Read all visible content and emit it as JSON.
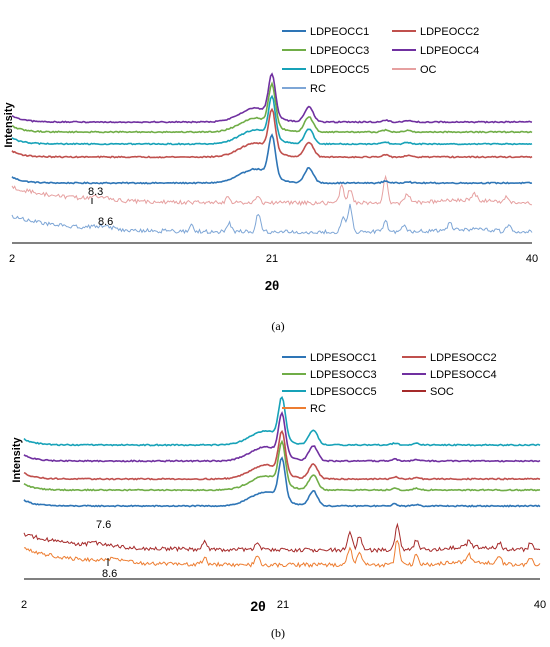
{
  "chart_data": [
    {
      "type": "line",
      "panel": "(a)",
      "xlabel": "2θ",
      "ylabel": "Intensity",
      "xticks": [
        "2",
        "21",
        "40"
      ],
      "xlim": [
        2,
        40
      ],
      "annotations": [
        "8.3",
        "8.6"
      ],
      "series": [
        {
          "name": "LDPEOCC1",
          "color": "#2e75b6",
          "peaks": [
            21.0,
            23.7
          ],
          "baseline_rank": 6
        },
        {
          "name": "LDPEOCC2",
          "color": "#c0504d",
          "peaks": [
            21.0,
            23.7
          ],
          "baseline_rank": 4
        },
        {
          "name": "LDPEOCC3",
          "color": "#70ad47",
          "peaks": [
            21.0,
            23.7
          ],
          "baseline_rank": 2
        },
        {
          "name": "LDPEOCC4",
          "color": "#7030a0",
          "peaks": [
            21.0,
            23.7
          ],
          "baseline_rank": 1
        },
        {
          "name": "LDPEOCC5",
          "color": "#17a2b8",
          "peaks": [
            21.0,
            23.7
          ],
          "baseline_rank": 3
        },
        {
          "name": "OC",
          "color": "#e6a0a0",
          "peaks": [
            8.3,
            17.8,
            20.0,
            26.1,
            26.7,
            29.3,
            30.9,
            35.8,
            38.2
          ],
          "baseline_rank": 7
        },
        {
          "name": "RC",
          "color": "#7ea6d6",
          "peaks": [
            8.6,
            15.1,
            17.9,
            20.0,
            26.2,
            26.7,
            29.3,
            30.6,
            34.0,
            38.3
          ],
          "baseline_rank": 8
        }
      ]
    },
    {
      "type": "line",
      "panel": "(b)",
      "xlabel": "2θ",
      "ylabel": "Intensity",
      "xticks": [
        "2",
        "21",
        "40"
      ],
      "xlim": [
        2,
        40
      ],
      "annotations": [
        "7.6",
        "8.6"
      ],
      "series": [
        {
          "name": "LDPESOCC1",
          "color": "#2e75b6",
          "peaks": [
            21.0,
            23.3
          ],
          "baseline_rank": 6
        },
        {
          "name": "LDPESOCC2",
          "color": "#c0504d",
          "peaks": [
            21.0,
            23.3
          ],
          "baseline_rank": 4
        },
        {
          "name": "LDPESOCC3",
          "color": "#70ad47",
          "peaks": [
            21.0,
            23.3
          ],
          "baseline_rank": 5
        },
        {
          "name": "LDPESOCC4",
          "color": "#7030a0",
          "peaks": [
            21.0,
            23.3
          ],
          "baseline_rank": 2
        },
        {
          "name": "LDPESOCC5",
          "color": "#17a2b8",
          "peaks": [
            21.0,
            23.3
          ],
          "baseline_rank": 1
        },
        {
          "name": "SOC",
          "color": "#a52a2a",
          "peaks": [
            7.6,
            15.3,
            19.2,
            26.0,
            26.7,
            29.5,
            30.9,
            34.8,
            37.0,
            39.3
          ],
          "baseline_rank": 7
        },
        {
          "name": "RC",
          "color": "#ed7d31",
          "peaks": [
            8.6,
            15.3,
            19.2,
            26.0,
            26.7,
            29.5,
            30.9,
            34.8,
            37.0,
            39.3
          ],
          "baseline_rank": 8
        }
      ]
    }
  ],
  "figure": {
    "caption_a": "(a)",
    "caption_b": "(b)"
  }
}
